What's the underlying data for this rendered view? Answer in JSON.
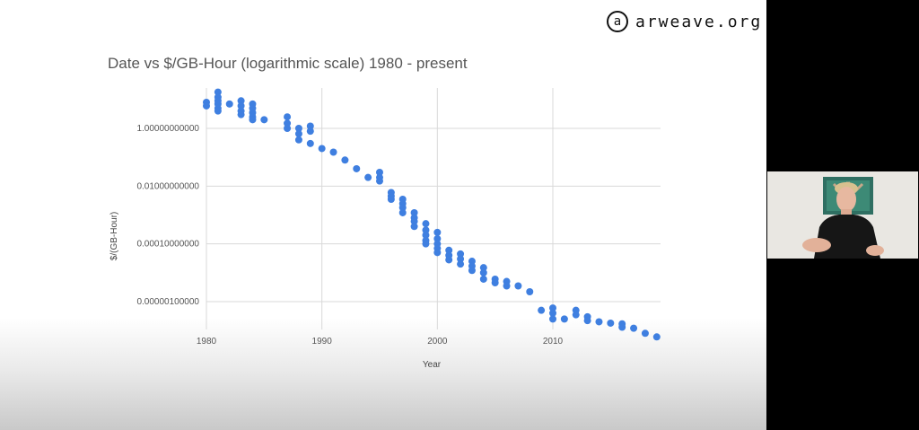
{
  "logo": {
    "mark": "a",
    "text": "arweave.org"
  },
  "chart_data": {
    "type": "scatter",
    "title": "Date vs $/GB-Hour (logarithmic scale) 1980 - present",
    "xlabel": "Year",
    "ylabel": "$/(GB-Hour)",
    "y_scale": "log",
    "xlim": [
      1980,
      2019
    ],
    "ylim": [
      3e-09,
      20
    ],
    "x_ticks": [
      {
        "value": 1980,
        "label": "1980"
      },
      {
        "value": 1990,
        "label": "1990"
      },
      {
        "value": 2000,
        "label": "2000"
      },
      {
        "value": 2010,
        "label": "2010"
      }
    ],
    "y_ticks": [
      {
        "value": 1,
        "label": "1.00000000000"
      },
      {
        "value": 0.01,
        "label": "0.01000000000"
      },
      {
        "value": 0.0001,
        "label": "0.00010000000"
      },
      {
        "value": 1e-06,
        "label": "0.00000100000"
      }
    ],
    "grid": true,
    "color": "#3f7fe0",
    "points": [
      {
        "x": 1980,
        "y": 8
      },
      {
        "x": 1980,
        "y": 6
      },
      {
        "x": 1981,
        "y": 18
      },
      {
        "x": 1981,
        "y": 12
      },
      {
        "x": 1981,
        "y": 9
      },
      {
        "x": 1981,
        "y": 7
      },
      {
        "x": 1981,
        "y": 5
      },
      {
        "x": 1981,
        "y": 4
      },
      {
        "x": 1982,
        "y": 7
      },
      {
        "x": 1983,
        "y": 9
      },
      {
        "x": 1983,
        "y": 6
      },
      {
        "x": 1983,
        "y": 4
      },
      {
        "x": 1983,
        "y": 3
      },
      {
        "x": 1984,
        "y": 7
      },
      {
        "x": 1984,
        "y": 5
      },
      {
        "x": 1984,
        "y": 3.5
      },
      {
        "x": 1984,
        "y": 2.5
      },
      {
        "x": 1984,
        "y": 2
      },
      {
        "x": 1985,
        "y": 2
      },
      {
        "x": 1987,
        "y": 2.5
      },
      {
        "x": 1987,
        "y": 1.5
      },
      {
        "x": 1987,
        "y": 1
      },
      {
        "x": 1988,
        "y": 1
      },
      {
        "x": 1988,
        "y": 0.65
      },
      {
        "x": 1988,
        "y": 0.4
      },
      {
        "x": 1989,
        "y": 1.2
      },
      {
        "x": 1989,
        "y": 0.8
      },
      {
        "x": 1989,
        "y": 0.3
      },
      {
        "x": 1990,
        "y": 0.2
      },
      {
        "x": 1991,
        "y": 0.15
      },
      {
        "x": 1992,
        "y": 0.08
      },
      {
        "x": 1993,
        "y": 0.04
      },
      {
        "x": 1994,
        "y": 0.02
      },
      {
        "x": 1995,
        "y": 0.03
      },
      {
        "x": 1995,
        "y": 0.02
      },
      {
        "x": 1995,
        "y": 0.015
      },
      {
        "x": 1996,
        "y": 0.006
      },
      {
        "x": 1996,
        "y": 0.0045
      },
      {
        "x": 1996,
        "y": 0.0035
      },
      {
        "x": 1997,
        "y": 0.0035
      },
      {
        "x": 1997,
        "y": 0.0025
      },
      {
        "x": 1997,
        "y": 0.0018
      },
      {
        "x": 1997,
        "y": 0.0012
      },
      {
        "x": 1998,
        "y": 0.0012
      },
      {
        "x": 1998,
        "y": 0.0008
      },
      {
        "x": 1998,
        "y": 0.0006
      },
      {
        "x": 1998,
        "y": 0.0004
      },
      {
        "x": 1999,
        "y": 0.0005
      },
      {
        "x": 1999,
        "y": 0.0003
      },
      {
        "x": 1999,
        "y": 0.0002
      },
      {
        "x": 1999,
        "y": 0.00013
      },
      {
        "x": 1999,
        "y": 0.0001
      },
      {
        "x": 2000,
        "y": 0.00025
      },
      {
        "x": 2000,
        "y": 0.00015
      },
      {
        "x": 2000,
        "y": 0.0001
      },
      {
        "x": 2000,
        "y": 7e-05
      },
      {
        "x": 2000,
        "y": 5e-05
      },
      {
        "x": 2001,
        "y": 6e-05
      },
      {
        "x": 2001,
        "y": 4e-05
      },
      {
        "x": 2001,
        "y": 2.8e-05
      },
      {
        "x": 2002,
        "y": 4.5e-05
      },
      {
        "x": 2002,
        "y": 3e-05
      },
      {
        "x": 2002,
        "y": 2e-05
      },
      {
        "x": 2003,
        "y": 2.5e-05
      },
      {
        "x": 2003,
        "y": 1.7e-05
      },
      {
        "x": 2003,
        "y": 1.2e-05
      },
      {
        "x": 2004,
        "y": 1.5e-05
      },
      {
        "x": 2004,
        "y": 1e-05
      },
      {
        "x": 2004,
        "y": 6e-06
      },
      {
        "x": 2005,
        "y": 6e-06
      },
      {
        "x": 2005,
        "y": 4.5e-06
      },
      {
        "x": 2006,
        "y": 5e-06
      },
      {
        "x": 2006,
        "y": 3.5e-06
      },
      {
        "x": 2007,
        "y": 3.5e-06
      },
      {
        "x": 2008,
        "y": 2.2e-06
      },
      {
        "x": 2009,
        "y": 5e-07
      },
      {
        "x": 2010,
        "y": 6e-07
      },
      {
        "x": 2010,
        "y": 4e-07
      },
      {
        "x": 2010,
        "y": 2.5e-07
      },
      {
        "x": 2011,
        "y": 2.5e-07
      },
      {
        "x": 2012,
        "y": 5e-07
      },
      {
        "x": 2012,
        "y": 3.5e-07
      },
      {
        "x": 2013,
        "y": 3e-07
      },
      {
        "x": 2013,
        "y": 2.2e-07
      },
      {
        "x": 2014,
        "y": 2e-07
      },
      {
        "x": 2015,
        "y": 1.8e-07
      },
      {
        "x": 2016,
        "y": 1.7e-07
      },
      {
        "x": 2016,
        "y": 1.3e-07
      },
      {
        "x": 2017,
        "y": 1.2e-07
      },
      {
        "x": 2018,
        "y": 8e-08
      },
      {
        "x": 2019,
        "y": 6e-08
      }
    ]
  }
}
